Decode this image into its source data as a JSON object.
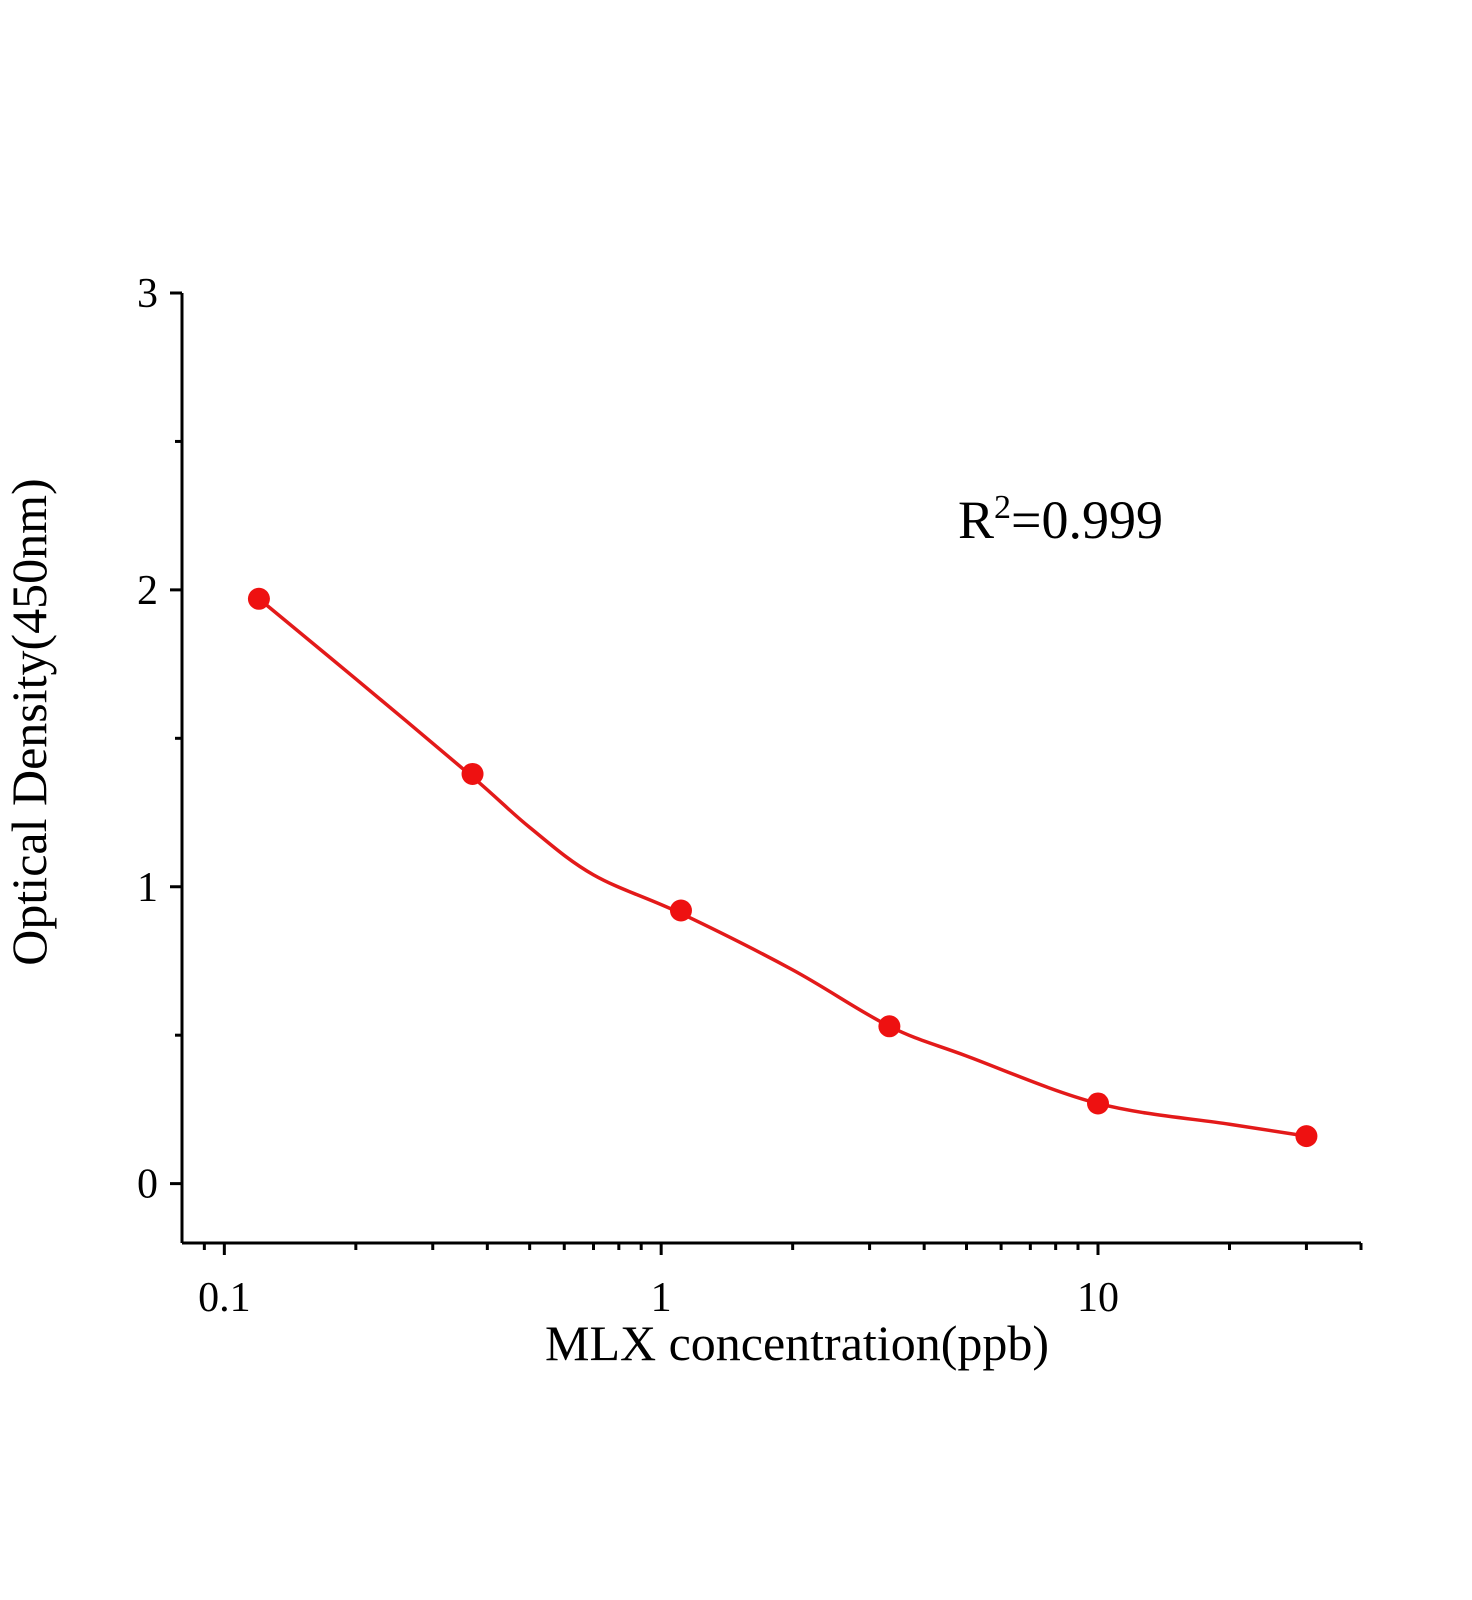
{
  "chart_data": {
    "type": "scatter",
    "x_label": "MLX concentration(ppb)",
    "y_label": "Optical Density(450nm)",
    "annotation": [
      "R",
      "2",
      "=0.999"
    ],
    "xscale": "log",
    "xlim": [
      0.08,
      40
    ],
    "xticks": [
      0.1,
      1,
      10
    ],
    "xminor": [
      0.09,
      0.2,
      0.3,
      0.4,
      0.5,
      0.6,
      0.7,
      0.8,
      0.9,
      2,
      3,
      4,
      5,
      6,
      7,
      8,
      9,
      20,
      30,
      40
    ],
    "ylim": [
      -0.2,
      3
    ],
    "yticks": [
      0,
      1,
      2,
      3
    ],
    "yminor": [
      0.5,
      1.5,
      2.5
    ],
    "series": [
      {
        "style": "markers",
        "color": "#ee1111",
        "x": [
          0.12,
          0.37,
          1.11,
          3.33,
          10,
          30
        ],
        "values": [
          1.97,
          1.38,
          0.92,
          0.53,
          0.27,
          0.16
        ]
      },
      {
        "style": "line",
        "color": "#e31a1a",
        "x": [
          0.12,
          0.2,
          0.37,
          0.5,
          0.7,
          1.11,
          2,
          3.33,
          5,
          10,
          20,
          30
        ],
        "values": [
          1.97,
          1.7,
          1.37,
          1.2,
          1.04,
          0.91,
          0.72,
          0.53,
          0.43,
          0.27,
          0.2,
          0.16
        ]
      }
    ]
  }
}
